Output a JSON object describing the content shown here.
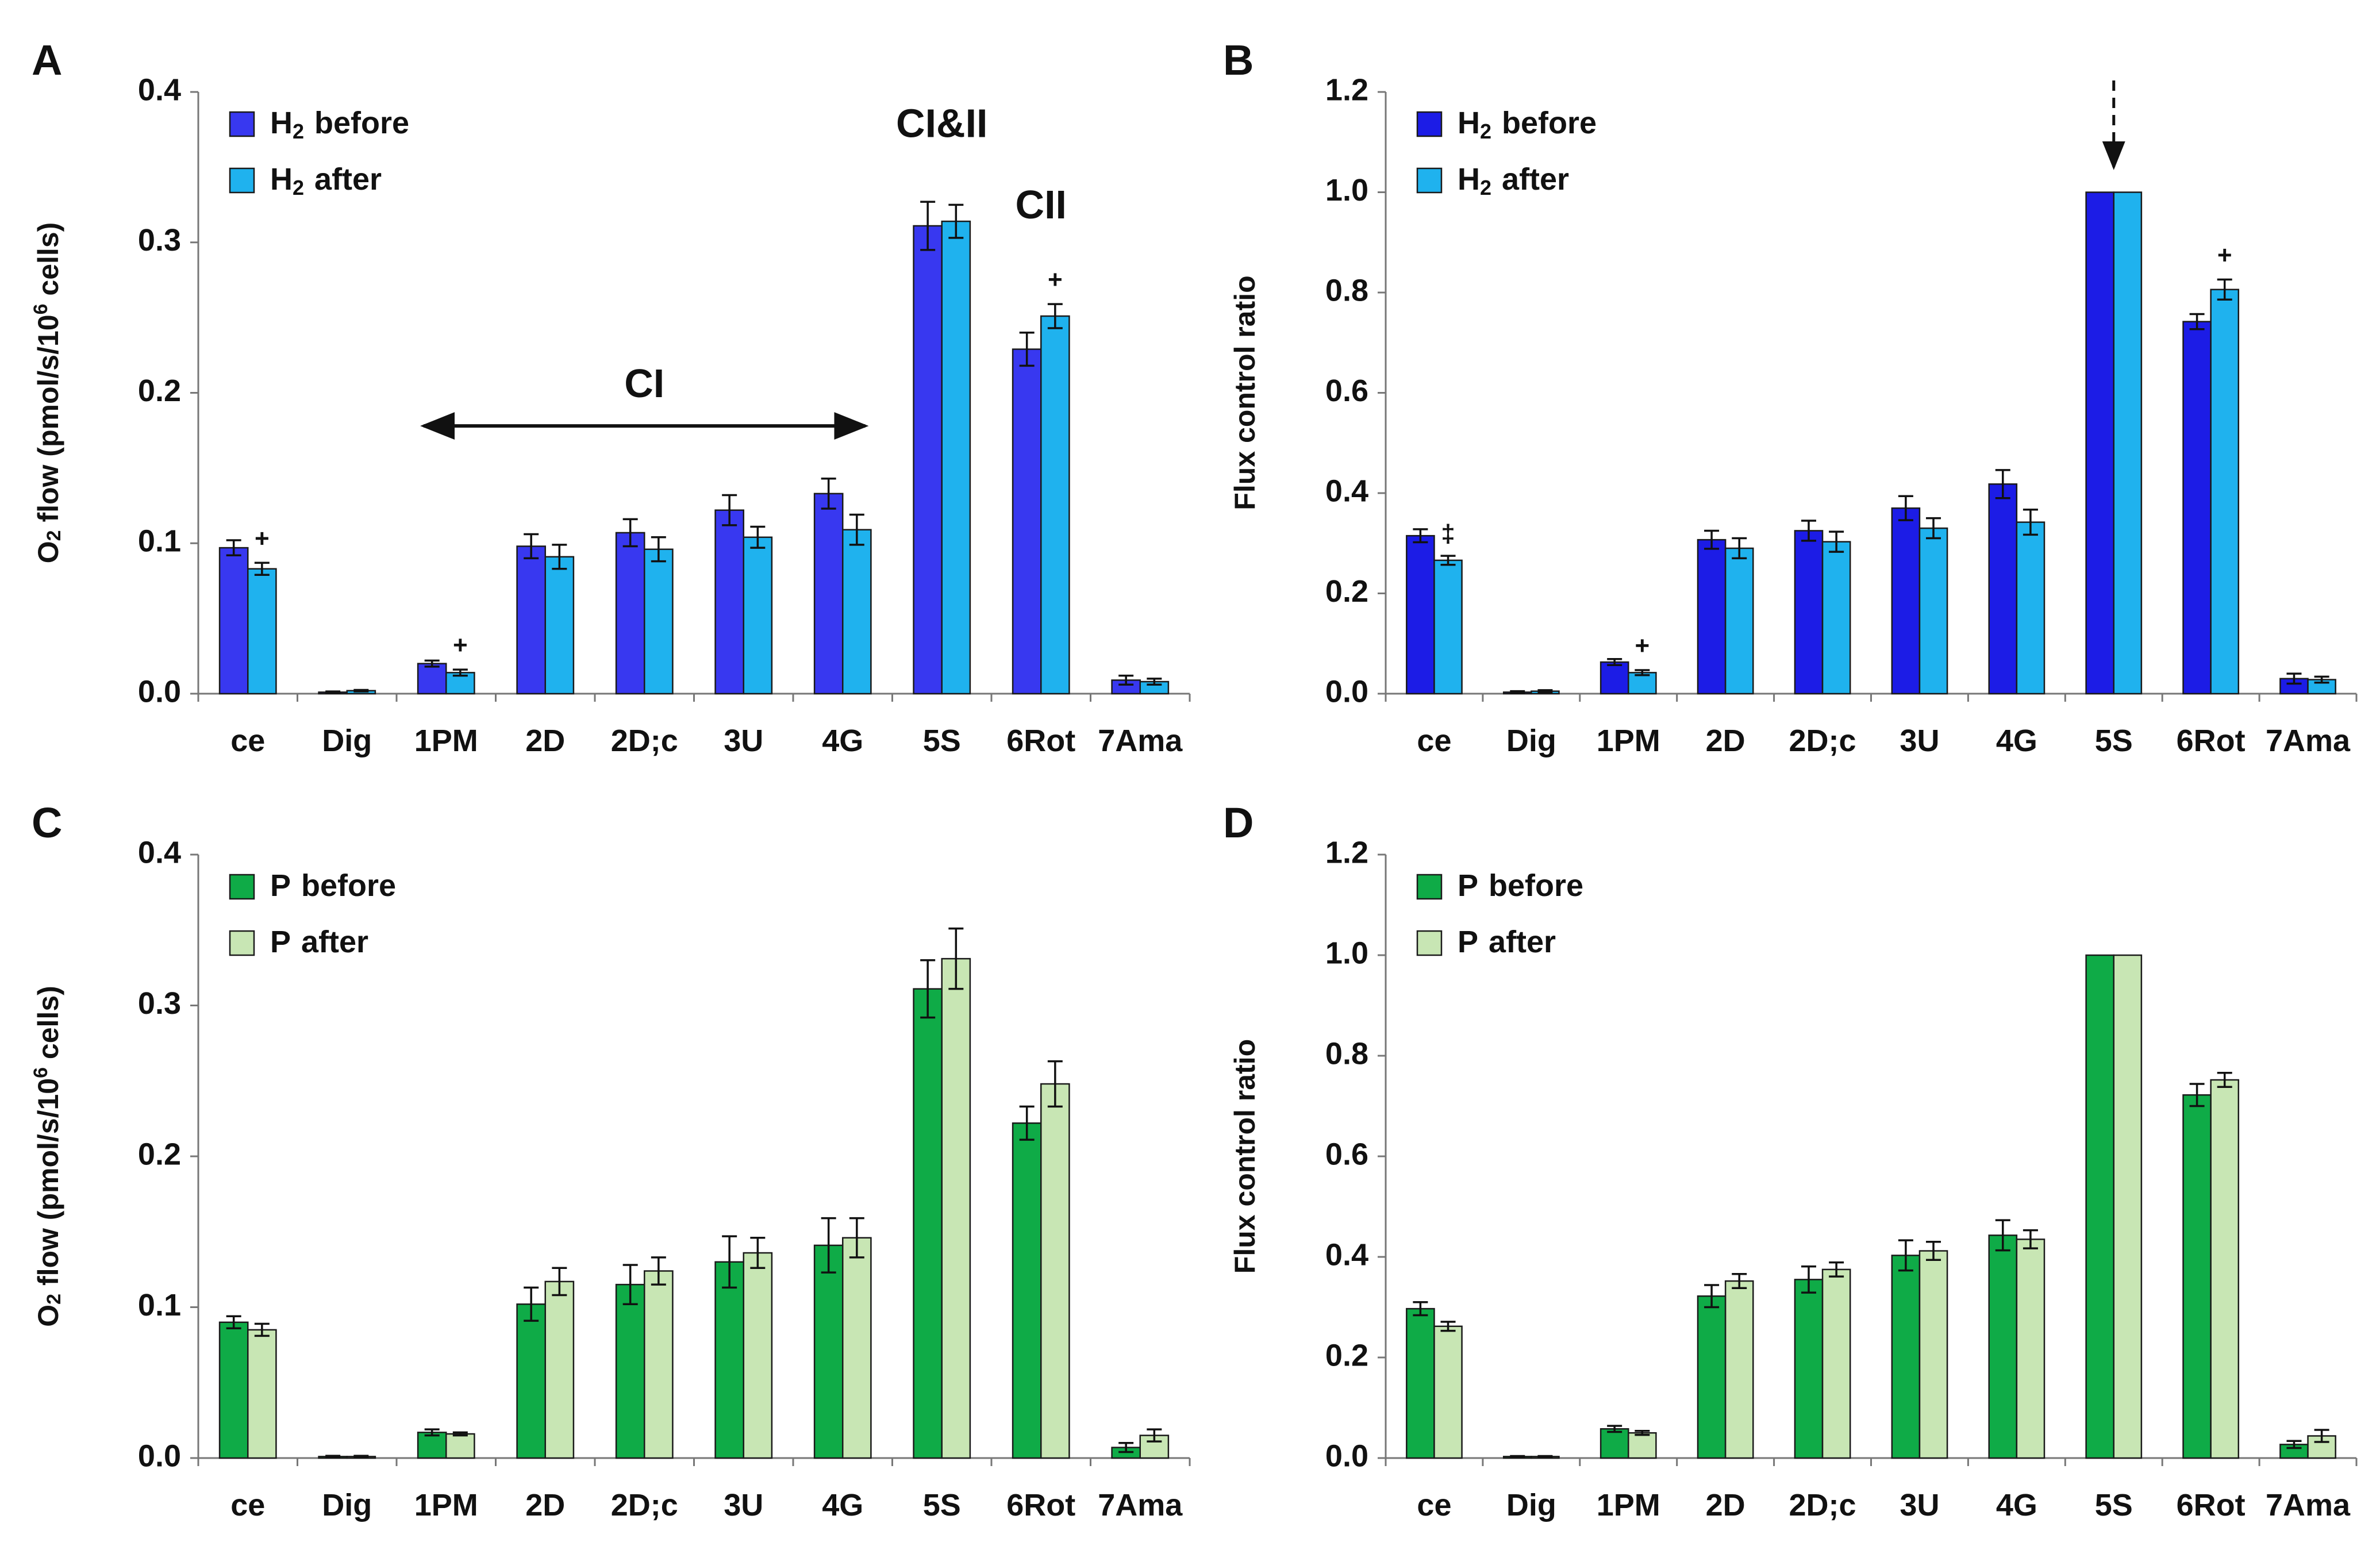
{
  "chart_data": [
    {
      "panel": "A",
      "type": "bar",
      "ylabel": "O2 flow (pmol/s/10^6 cells)",
      "ylabel_parts": {
        "o": "O",
        "sub": "2",
        "mid": " flow (pmol/s/10",
        "sup": "6",
        "end": " cells)"
      },
      "ylim": [
        0,
        0.4
      ],
      "yticks": [
        "0.0",
        "0.1",
        "0.2",
        "0.3",
        "0.4"
      ],
      "ytick_values": [
        0,
        0.1,
        0.2,
        0.3,
        0.4
      ],
      "categories": [
        "ce",
        "Dig",
        "1PM",
        "2D",
        "2D;c",
        "3U",
        "4G",
        "5S",
        "6Rot",
        "7Ama"
      ],
      "series": [
        {
          "name": "H2 before",
          "legend_main": "H",
          "legend_sub": "2",
          "legend_rest": "before",
          "color": "#3838f0",
          "values": [
            0.097,
            0.001,
            0.02,
            0.098,
            0.107,
            0.122,
            0.133,
            0.311,
            0.229,
            0.009
          ],
          "errors": [
            0.005,
            0.0005,
            0.002,
            0.008,
            0.009,
            0.01,
            0.01,
            0.016,
            0.011,
            0.003
          ]
        },
        {
          "name": "H2 after",
          "legend_main": "H",
          "legend_sub": "2",
          "legend_rest": "after",
          "color": "#1fb2ee",
          "values": [
            0.083,
            0.002,
            0.014,
            0.091,
            0.096,
            0.104,
            0.109,
            0.314,
            0.251,
            0.008
          ],
          "errors": [
            0.004,
            0.0005,
            0.002,
            0.008,
            0.008,
            0.007,
            0.01,
            0.011,
            0.008,
            0.002
          ]
        }
      ],
      "significance": [
        {
          "symbol": "+",
          "category": "ce",
          "series": 1
        },
        {
          "symbol": "+",
          "category": "1PM",
          "series": 1
        },
        {
          "symbol": "+",
          "category": "6Rot",
          "series": 1
        }
      ],
      "annotations": [
        {
          "text": "CI",
          "type": "double-arrow",
          "from": "1PM",
          "to": "4G",
          "y_value": 0.178
        },
        {
          "text": "CI&II",
          "category": "5S",
          "y_value": 0.37
        },
        {
          "text": "CII",
          "category": "6Rot",
          "y_value": 0.316
        }
      ],
      "legend_position": "top-left"
    },
    {
      "panel": "B",
      "type": "bar",
      "ylabel": "Flux control ratio",
      "ylim": [
        0,
        1.2
      ],
      "yticks": [
        "0.0",
        "0.2",
        "0.4",
        "0.6",
        "0.8",
        "1.0",
        "1.2"
      ],
      "ytick_values": [
        0,
        0.2,
        0.4,
        0.6,
        0.8,
        1.0,
        1.2
      ],
      "categories": [
        "ce",
        "Dig",
        "1PM",
        "2D",
        "2D;c",
        "3U",
        "4G",
        "5S",
        "6Rot",
        "7Ama"
      ],
      "series": [
        {
          "name": "H2 before",
          "legend_main": "H",
          "legend_sub": "2",
          "legend_rest": "before",
          "color": "#1c1ce6",
          "values": [
            0.315,
            0.003,
            0.063,
            0.307,
            0.325,
            0.37,
            0.418,
            1.0,
            0.742,
            0.03
          ],
          "errors": [
            0.013,
            0.002,
            0.006,
            0.018,
            0.02,
            0.024,
            0.028,
            0,
            0.015,
            0.01
          ]
        },
        {
          "name": "H2 after",
          "legend_main": "H",
          "legend_sub": "2",
          "legend_rest": "after",
          "color": "#1fb2ee",
          "values": [
            0.266,
            0.005,
            0.042,
            0.29,
            0.303,
            0.33,
            0.342,
            1.0,
            0.806,
            0.028
          ],
          "errors": [
            0.009,
            0.002,
            0.005,
            0.02,
            0.02,
            0.02,
            0.025,
            0,
            0.02,
            0.006
          ]
        }
      ],
      "significance": [
        {
          "symbol": "‡",
          "category": "ce",
          "series": 1
        },
        {
          "symbol": "+",
          "category": "1PM",
          "series": 1
        },
        {
          "symbol": "+",
          "category": "6Rot",
          "series": 1
        }
      ],
      "annotations": [
        {
          "type": "dashed-arrow",
          "category": "5S",
          "from_value": 1.2,
          "to_value": 1.05
        }
      ],
      "legend_position": "top-left"
    },
    {
      "panel": "C",
      "type": "bar",
      "ylabel": "O2 flow (pmol/s/10^6 cells)",
      "ylabel_parts": {
        "o": "O",
        "sub": "2",
        "mid": " flow (pmol/s/10",
        "sup": "6",
        "end": " cells)"
      },
      "ylim": [
        0,
        0.4
      ],
      "yticks": [
        "0.0",
        "0.1",
        "0.2",
        "0.3",
        "0.4"
      ],
      "ytick_values": [
        0,
        0.1,
        0.2,
        0.3,
        0.4
      ],
      "categories": [
        "ce",
        "Dig",
        "1PM",
        "2D",
        "2D;c",
        "3U",
        "4G",
        "5S",
        "6Rot",
        "7Ama"
      ],
      "series": [
        {
          "name": "P before",
          "legend_main": "P",
          "legend_sub": "",
          "legend_rest": "before",
          "color": "#0fab47",
          "values": [
            0.09,
            0.001,
            0.017,
            0.102,
            0.115,
            0.13,
            0.141,
            0.311,
            0.222,
            0.007
          ],
          "errors": [
            0.004,
            0.0005,
            0.002,
            0.011,
            0.013,
            0.017,
            0.018,
            0.019,
            0.011,
            0.003
          ]
        },
        {
          "name": "P after",
          "legend_main": "P",
          "legend_sub": "",
          "legend_rest": "after",
          "color": "#c8e6b4",
          "values": [
            0.085,
            0.001,
            0.016,
            0.117,
            0.124,
            0.136,
            0.146,
            0.331,
            0.248,
            0.015
          ],
          "errors": [
            0.004,
            0.0005,
            0.001,
            0.009,
            0.009,
            0.01,
            0.013,
            0.02,
            0.015,
            0.004
          ]
        }
      ],
      "legend_position": "top-left"
    },
    {
      "panel": "D",
      "type": "bar",
      "ylabel": "Flux control ratio",
      "ylim": [
        0,
        1.2
      ],
      "yticks": [
        "0.0",
        "0.2",
        "0.4",
        "0.6",
        "0.8",
        "1.0",
        "1.2"
      ],
      "ytick_values": [
        0,
        0.2,
        0.4,
        0.6,
        0.8,
        1.0,
        1.2
      ],
      "categories": [
        "ce",
        "Dig",
        "1PM",
        "2D",
        "2D;c",
        "3U",
        "4G",
        "5S",
        "6Rot",
        "7Ama"
      ],
      "series": [
        {
          "name": "P before",
          "legend_main": "P",
          "legend_sub": "",
          "legend_rest": "before",
          "color": "#0fab47",
          "values": [
            0.297,
            0.003,
            0.058,
            0.322,
            0.355,
            0.403,
            0.443,
            1.0,
            0.722,
            0.027
          ],
          "errors": [
            0.013,
            0.001,
            0.006,
            0.022,
            0.026,
            0.03,
            0.03,
            0,
            0.022,
            0.007
          ]
        },
        {
          "name": "P after",
          "legend_main": "P",
          "legend_sub": "",
          "legend_rest": "after",
          "color": "#c8e6b4",
          "values": [
            0.262,
            0.003,
            0.05,
            0.352,
            0.375,
            0.412,
            0.435,
            1.0,
            0.752,
            0.044
          ],
          "errors": [
            0.009,
            0.001,
            0.004,
            0.014,
            0.014,
            0.018,
            0.018,
            0,
            0.014,
            0.012
          ]
        }
      ],
      "legend_position": "top-left"
    }
  ]
}
